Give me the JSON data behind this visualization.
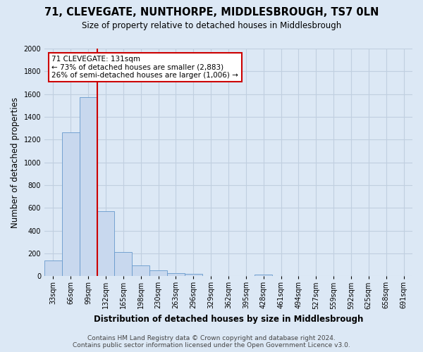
{
  "title": "71, CLEVEGATE, NUNTHORPE, MIDDLESBROUGH, TS7 0LN",
  "subtitle": "Size of property relative to detached houses in Middlesbrough",
  "xlabel": "Distribution of detached houses by size in Middlesbrough",
  "ylabel": "Number of detached properties",
  "bar_labels": [
    "33sqm",
    "66sqm",
    "99sqm",
    "132sqm",
    "165sqm",
    "198sqm",
    "230sqm",
    "263sqm",
    "296sqm",
    "329sqm",
    "362sqm",
    "395sqm",
    "428sqm",
    "461sqm",
    "494sqm",
    "527sqm",
    "559sqm",
    "592sqm",
    "625sqm",
    "658sqm",
    "691sqm"
  ],
  "bar_values": [
    140,
    1265,
    1570,
    570,
    210,
    95,
    50,
    28,
    18,
    0,
    0,
    0,
    15,
    0,
    0,
    0,
    0,
    0,
    0,
    0,
    0
  ],
  "bar_color": "#c8d8ee",
  "bar_edge_color": "#6699cc",
  "vline_color": "#cc0000",
  "ylim": [
    0,
    2000
  ],
  "yticks": [
    0,
    200,
    400,
    600,
    800,
    1000,
    1200,
    1400,
    1600,
    1800,
    2000
  ],
  "annotation_title": "71 CLEVEGATE: 131sqm",
  "annotation_line1": "← 73% of detached houses are smaller (2,883)",
  "annotation_line2": "26% of semi-detached houses are larger (1,006) →",
  "annotation_box_color": "#ffffff",
  "annotation_box_edge": "#cc0000",
  "footer_line1": "Contains HM Land Registry data © Crown copyright and database right 2024.",
  "footer_line2": "Contains public sector information licensed under the Open Government Licence v3.0.",
  "background_color": "#dce8f5",
  "plot_bg_color": "#dce8f5",
  "grid_color": "#c0cfe0",
  "title_fontsize": 10.5,
  "subtitle_fontsize": 8.5,
  "axis_label_fontsize": 8.5,
  "tick_fontsize": 7,
  "annotation_fontsize": 7.5,
  "footer_fontsize": 6.5
}
